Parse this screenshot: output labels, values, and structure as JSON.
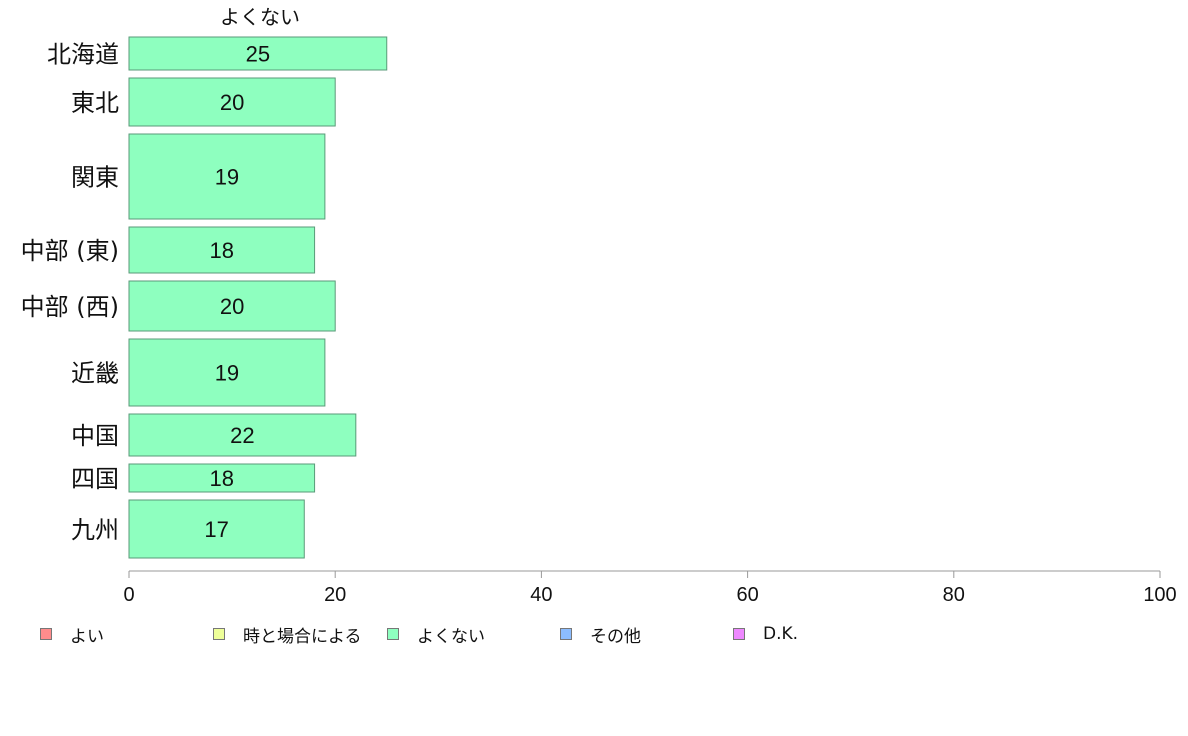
{
  "chart_data": {
    "type": "bar",
    "orientation": "horizontal",
    "series_label": "よくない",
    "categories": [
      "北海道",
      "東北",
      "関東",
      "中部 (東)",
      "中部 (西)",
      "近畿",
      "中国",
      "四国",
      "九州"
    ],
    "values": [
      25,
      20,
      19,
      18,
      20,
      19,
      22,
      18,
      17
    ],
    "bar_color": "#8effbf",
    "bar_border_color": "#5a9a78",
    "xlim": [
      0,
      100
    ],
    "x_ticks": [
      0,
      20,
      40,
      60,
      80,
      100
    ],
    "legend": [
      {
        "label": "よい",
        "color": "#ff8c8c"
      },
      {
        "label": "時と場合による",
        "color": "#eeff99"
      },
      {
        "label": "よくない",
        "color": "#8effbf"
      },
      {
        "label": "その他",
        "color": "#8cbdff"
      },
      {
        "label": "D.K.",
        "color": "#ee88ff"
      }
    ]
  }
}
